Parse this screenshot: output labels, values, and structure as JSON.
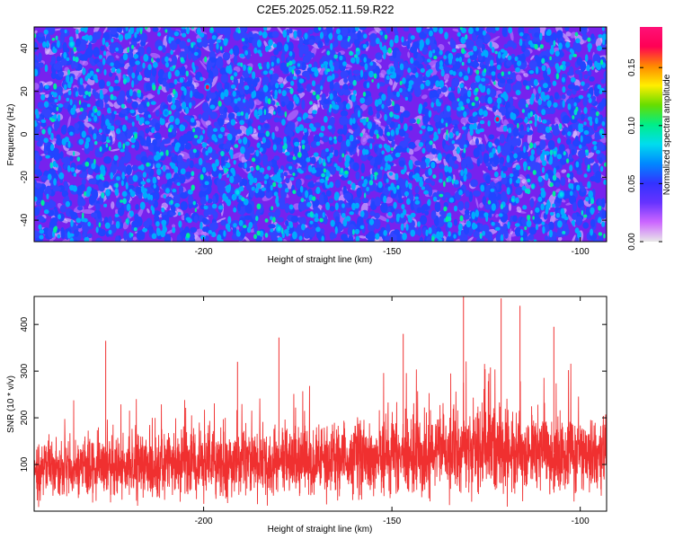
{
  "title": "C2E5.2025.052.11.59.R22",
  "chart_data": [
    {
      "type": "heatmap",
      "xlabel": "Height of straight line (km)",
      "ylabel": "Frequency (Hz)",
      "xlim": [
        -245,
        -93
      ],
      "ylim": [
        -50,
        50
      ],
      "xticks": [
        -200,
        -150,
        -100
      ],
      "yticks": [
        -40,
        -20,
        0,
        20,
        40
      ],
      "colorbar": {
        "label": "Normalized spectral amplitude",
        "range": [
          0,
          0.185
        ],
        "ticks": [
          "0.00",
          "0.05",
          "0.10",
          "0.15"
        ],
        "colors": [
          "#e8e8e8",
          "#cc66ff",
          "#6633ff",
          "#3333ff",
          "#0088ff",
          "#00ddee",
          "#00ee88",
          "#66dd00",
          "#ffee00",
          "#ff8800",
          "#ff0055",
          "#ff1177"
        ]
      },
      "background_color": "#7722ee",
      "blob_color_low": "#3344ff",
      "blob_color_mid": "#00aaff",
      "blob_color_high": "#00ee99",
      "sample_blobs": [
        {
          "x": -199,
          "y": 22,
          "v": 0.16
        },
        {
          "x": -122,
          "y": 7,
          "v": 0.17
        },
        {
          "x": -191,
          "y": -27,
          "v": 0.09
        },
        {
          "x": -235,
          "y": 42,
          "v": 0.08
        },
        {
          "x": -180,
          "y": -44,
          "v": 0.08
        },
        {
          "x": -150,
          "y": 30,
          "v": 0.07
        },
        {
          "x": -105,
          "y": -28,
          "v": 0.08
        },
        {
          "x": -210,
          "y": 10,
          "v": 0.07
        }
      ]
    },
    {
      "type": "line",
      "xlabel": "Height of straight line (km)",
      "ylabel": "SNR (10 * v/v)",
      "xlim": [
        -245,
        -93
      ],
      "ylim": [
        0,
        460
      ],
      "xticks": [
        -200,
        -150,
        -100
      ],
      "yticks": [
        100,
        200,
        300,
        400
      ],
      "color": "#f03030",
      "trend": {
        "x": [
          -245,
          -200,
          -170,
          -150,
          -130,
          -110,
          -93
        ],
        "base": [
          92,
          98,
          108,
          118,
          128,
          126,
          122
        ],
        "spread": [
          52,
          55,
          60,
          66,
          72,
          70,
          68
        ]
      },
      "sample_spikes": [
        {
          "x": -226,
          "y": 365
        },
        {
          "x": -191,
          "y": 320
        },
        {
          "x": -180,
          "y": 372
        },
        {
          "x": -131,
          "y": 460
        },
        {
          "x": -121,
          "y": 456
        },
        {
          "x": -116,
          "y": 440
        },
        {
          "x": -107,
          "y": 395
        },
        {
          "x": -147,
          "y": 380
        }
      ]
    }
  ]
}
